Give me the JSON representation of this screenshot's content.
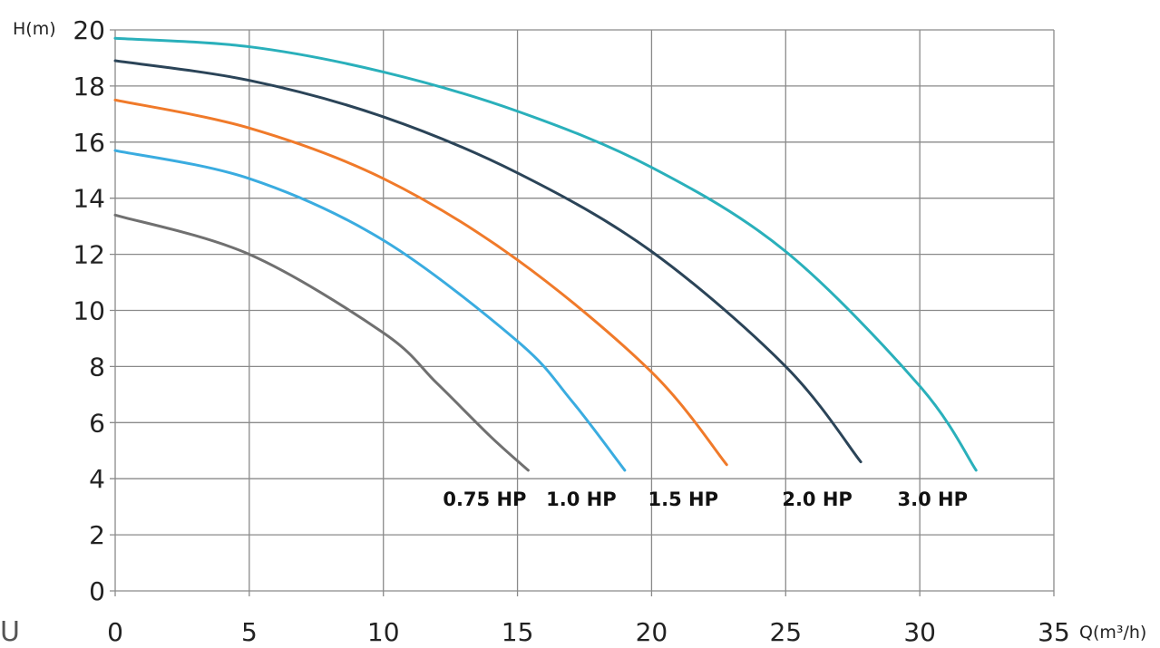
{
  "chart_data": {
    "type": "line",
    "title": "",
    "ylabel": "H(m)",
    "xlabel": "Q(m³/h)",
    "xlim": [
      0,
      35
    ],
    "ylim": [
      0,
      20
    ],
    "x_ticks": [
      0,
      5,
      10,
      15,
      20,
      25,
      30,
      35
    ],
    "y_ticks": [
      0,
      2,
      4,
      6,
      8,
      10,
      12,
      14,
      16,
      18,
      20
    ],
    "grid": true,
    "corner_mark": "U",
    "series": [
      {
        "name": "0.75 HP",
        "color": "#707070",
        "x": [
          0,
          5,
          10,
          12,
          14,
          15.4
        ],
        "y": [
          13.4,
          12.0,
          9.2,
          7.4,
          5.5,
          4.3
        ]
      },
      {
        "name": "1.0 HP",
        "color": "#3aace0",
        "x": [
          0,
          5,
          10,
          15,
          17,
          19.0
        ],
        "y": [
          15.7,
          14.7,
          12.5,
          8.9,
          6.8,
          4.3
        ]
      },
      {
        "name": "1.5 HP",
        "color": "#f07a2a",
        "x": [
          0,
          5,
          10,
          15,
          20,
          22.8
        ],
        "y": [
          17.5,
          16.5,
          14.7,
          11.8,
          7.8,
          4.5
        ]
      },
      {
        "name": "2.0 HP",
        "color": "#2b4458",
        "x": [
          0,
          5,
          10,
          15,
          20,
          25,
          27.8
        ],
        "y": [
          18.9,
          18.2,
          16.9,
          14.9,
          12.1,
          8.0,
          4.6
        ]
      },
      {
        "name": "3.0 HP",
        "color": "#2ab0bb",
        "x": [
          0,
          5,
          10,
          15,
          20,
          25,
          30,
          32.1
        ],
        "y": [
          19.7,
          19.4,
          18.5,
          17.1,
          15.1,
          12.1,
          7.3,
          4.3
        ]
      }
    ]
  }
}
